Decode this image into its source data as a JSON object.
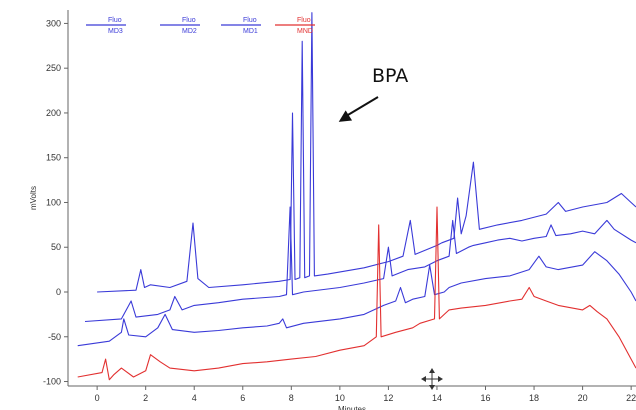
{
  "chart_data": {
    "type": "line",
    "title": "",
    "xlabel": "Minutes",
    "ylabel": "mVolts",
    "xlim": [
      -1.2,
      22.2
    ],
    "ylim": [
      -105,
      315
    ],
    "x_ticks": [
      0,
      2,
      4,
      6,
      8,
      10,
      12,
      14,
      16,
      18,
      20,
      22
    ],
    "y_ticks": [
      -100,
      -50,
      0,
      50,
      100,
      150,
      200,
      250,
      300
    ],
    "grid": false,
    "legend_position": "top-left",
    "legend": [
      {
        "line1": "Fluo",
        "line2": "MD3",
        "color": "#3a3ad8"
      },
      {
        "line1": "Fluo",
        "line2": "MD2",
        "color": "#3a3ad8"
      },
      {
        "line1": "Fluo",
        "line2": "MD1",
        "color": "#3a3ad8"
      },
      {
        "line1": "Fluo",
        "line2": "MND",
        "color": "#e23030"
      }
    ],
    "annotation": {
      "text": "BPA",
      "arrow_to_x": 8.8,
      "arrow_to_y": 190
    },
    "series": [
      {
        "name": "MD3",
        "color": "#3a3ad8",
        "points": [
          [
            0.0,
            0
          ],
          [
            1.6,
            2
          ],
          [
            1.8,
            25
          ],
          [
            1.95,
            5
          ],
          [
            2.2,
            8
          ],
          [
            3.0,
            5
          ],
          [
            3.7,
            12
          ],
          [
            3.95,
            77
          ],
          [
            4.15,
            15
          ],
          [
            4.6,
            5
          ],
          [
            6.0,
            8
          ],
          [
            7.5,
            12
          ],
          [
            7.95,
            14
          ],
          [
            8.05,
            200
          ],
          [
            8.15,
            14
          ],
          [
            8.35,
            16
          ],
          [
            8.45,
            280
          ],
          [
            8.55,
            16
          ],
          [
            8.75,
            18
          ],
          [
            8.85,
            312
          ],
          [
            8.95,
            18
          ],
          [
            9.5,
            20
          ],
          [
            11.0,
            27
          ],
          [
            12.0,
            34
          ],
          [
            12.6,
            40
          ],
          [
            12.9,
            80
          ],
          [
            13.1,
            42
          ],
          [
            14.0,
            52
          ],
          [
            14.2,
            55
          ],
          [
            14.7,
            60
          ],
          [
            14.85,
            105
          ],
          [
            15.0,
            65
          ],
          [
            15.2,
            85
          ],
          [
            15.5,
            145
          ],
          [
            15.75,
            70
          ],
          [
            16.5,
            75
          ],
          [
            17.5,
            80
          ],
          [
            18.5,
            87
          ],
          [
            19.0,
            100
          ],
          [
            19.3,
            90
          ],
          [
            20.0,
            95
          ],
          [
            21.0,
            100
          ],
          [
            21.6,
            110
          ],
          [
            22.0,
            100
          ],
          [
            22.2,
            95
          ]
        ]
      },
      {
        "name": "MD2",
        "color": "#3a3ad8",
        "points": [
          [
            -0.5,
            -33
          ],
          [
            1.0,
            -30
          ],
          [
            1.2,
            -20
          ],
          [
            1.4,
            -10
          ],
          [
            1.6,
            -28
          ],
          [
            2.5,
            -25
          ],
          [
            3.0,
            -20
          ],
          [
            3.2,
            -5
          ],
          [
            3.5,
            -20
          ],
          [
            4.0,
            -15
          ],
          [
            5.0,
            -12
          ],
          [
            6.0,
            -8
          ],
          [
            7.5,
            -5
          ],
          [
            7.8,
            -3
          ],
          [
            7.95,
            95
          ],
          [
            8.05,
            -3
          ],
          [
            8.5,
            0
          ],
          [
            10.0,
            5
          ],
          [
            11.0,
            10
          ],
          [
            11.8,
            15
          ],
          [
            12.0,
            50
          ],
          [
            12.15,
            18
          ],
          [
            12.8,
            25
          ],
          [
            13.5,
            28
          ],
          [
            14.0,
            35
          ],
          [
            14.5,
            40
          ],
          [
            14.65,
            80
          ],
          [
            14.8,
            43
          ],
          [
            15.3,
            50
          ],
          [
            15.5,
            52
          ],
          [
            16.0,
            55
          ],
          [
            16.5,
            58
          ],
          [
            17.0,
            60
          ],
          [
            17.5,
            57
          ],
          [
            18.0,
            60
          ],
          [
            18.5,
            62
          ],
          [
            18.7,
            75
          ],
          [
            18.9,
            63
          ],
          [
            19.5,
            65
          ],
          [
            20.0,
            68
          ],
          [
            20.5,
            65
          ],
          [
            21.0,
            80
          ],
          [
            21.3,
            70
          ],
          [
            22.0,
            58
          ],
          [
            22.2,
            55
          ]
        ]
      },
      {
        "name": "MD1",
        "color": "#3a3ad8",
        "points": [
          [
            -0.8,
            -60
          ],
          [
            0.5,
            -55
          ],
          [
            1.0,
            -45
          ],
          [
            1.1,
            -30
          ],
          [
            1.3,
            -48
          ],
          [
            2.0,
            -50
          ],
          [
            2.5,
            -40
          ],
          [
            2.8,
            -25
          ],
          [
            3.1,
            -42
          ],
          [
            4.0,
            -45
          ],
          [
            5.0,
            -43
          ],
          [
            6.0,
            -40
          ],
          [
            7.0,
            -38
          ],
          [
            7.5,
            -35
          ],
          [
            7.65,
            -30
          ],
          [
            7.8,
            -40
          ],
          [
            8.5,
            -35
          ],
          [
            10.0,
            -30
          ],
          [
            11.0,
            -25
          ],
          [
            11.8,
            -15
          ],
          [
            12.3,
            -10
          ],
          [
            12.5,
            5
          ],
          [
            12.7,
            -12
          ],
          [
            13.0,
            -8
          ],
          [
            13.5,
            -5
          ],
          [
            13.7,
            30
          ],
          [
            13.9,
            -3
          ],
          [
            14.3,
            0
          ],
          [
            14.5,
            5
          ],
          [
            15.0,
            10
          ],
          [
            16.0,
            15
          ],
          [
            17.0,
            18
          ],
          [
            17.8,
            25
          ],
          [
            18.2,
            40
          ],
          [
            18.5,
            28
          ],
          [
            19.0,
            25
          ],
          [
            20.0,
            30
          ],
          [
            20.5,
            45
          ],
          [
            21.0,
            35
          ],
          [
            21.5,
            20
          ],
          [
            22.0,
            0
          ],
          [
            22.2,
            -10
          ]
        ]
      },
      {
        "name": "MND",
        "color": "#e23030",
        "points": [
          [
            -0.8,
            -95
          ],
          [
            0.2,
            -90
          ],
          [
            0.35,
            -75
          ],
          [
            0.5,
            -98
          ],
          [
            0.7,
            -92
          ],
          [
            1.0,
            -85
          ],
          [
            1.5,
            -95
          ],
          [
            2.0,
            -88
          ],
          [
            2.2,
            -70
          ],
          [
            2.6,
            -78
          ],
          [
            3.0,
            -85
          ],
          [
            4.0,
            -88
          ],
          [
            5.0,
            -85
          ],
          [
            6.0,
            -80
          ],
          [
            7.0,
            -78
          ],
          [
            8.0,
            -75
          ],
          [
            9.0,
            -72
          ],
          [
            10.0,
            -65
          ],
          [
            11.0,
            -60
          ],
          [
            11.5,
            -50
          ],
          [
            11.6,
            75
          ],
          [
            11.7,
            -50
          ],
          [
            12.3,
            -45
          ],
          [
            13.0,
            -40
          ],
          [
            13.3,
            -35
          ],
          [
            13.9,
            -30
          ],
          [
            14.0,
            95
          ],
          [
            14.1,
            -30
          ],
          [
            14.5,
            -20
          ],
          [
            15.0,
            -18
          ],
          [
            16.0,
            -15
          ],
          [
            17.0,
            -10
          ],
          [
            17.5,
            -8
          ],
          [
            17.8,
            5
          ],
          [
            18.0,
            -5
          ],
          [
            18.5,
            -10
          ],
          [
            19.0,
            -15
          ],
          [
            20.0,
            -20
          ],
          [
            20.3,
            -15
          ],
          [
            20.6,
            -22
          ],
          [
            21.0,
            -30
          ],
          [
            21.5,
            -50
          ],
          [
            22.0,
            -75
          ],
          [
            22.2,
            -85
          ]
        ]
      }
    ]
  }
}
